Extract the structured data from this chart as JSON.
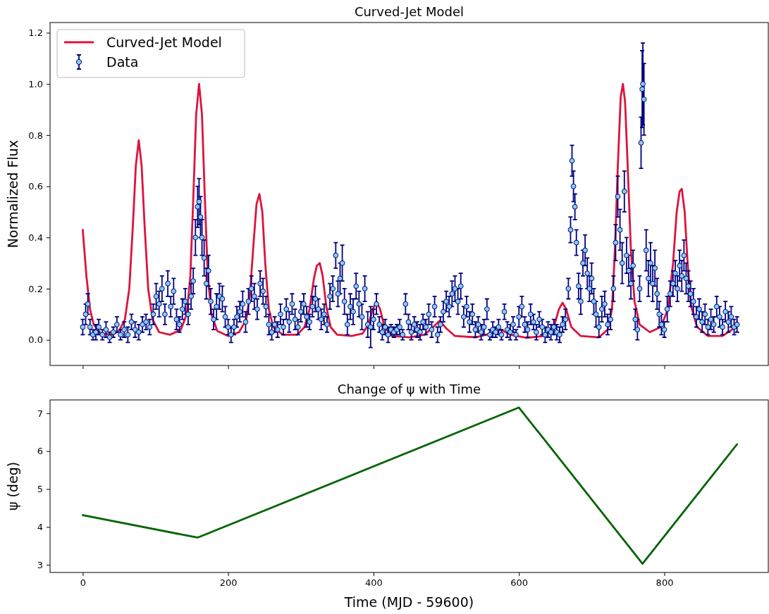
{
  "chart_data": [
    {
      "type": "line",
      "title": "Curved-Jet Model",
      "ylabel": "Normalized Flux",
      "xlim": [
        -45,
        943
      ],
      "xticks": [
        0,
        200,
        400,
        600,
        800
      ],
      "ylim": [
        -0.1,
        1.24
      ],
      "yticks": [
        {
          "value": 0,
          "label": "0.0"
        },
        0.2,
        0.4,
        0.6,
        0.8,
        {
          "value": 1,
          "label": "1.0"
        },
        1.2
      ],
      "tick_labels": "y",
      "legend": "top left",
      "grid": false,
      "series": [
        {
          "name": "Curved-Jet Model",
          "color": "#dc143c",
          "line_style": "solid",
          "x": [
            0,
            5,
            10,
            15,
            25,
            40,
            50,
            58,
            64,
            69,
            73,
            77,
            81,
            85,
            90,
            96,
            105,
            120,
            135,
            143,
            148,
            152,
            156,
            160,
            164,
            168,
            172,
            177,
            185,
            200,
            215,
            225,
            230,
            235,
            239,
            243,
            247,
            251,
            256,
            262,
            275,
            295,
            305,
            312,
            318,
            322,
            326,
            330,
            335,
            341,
            350,
            370,
            385,
            393,
            399,
            404,
            409,
            415,
            425,
            450,
            470,
            482,
            491,
            500,
            512,
            540,
            562,
            575,
            588,
            610,
            635,
            648,
            655,
            660,
            665,
            672,
            685,
            710,
            722,
            728,
            732,
            736,
            740,
            743,
            746,
            750,
            754,
            759,
            766,
            780,
            795,
            805,
            812,
            817,
            821,
            824,
            828,
            832,
            837,
            845,
            860,
            880,
            893,
            900
          ],
          "values": [
            0.43,
            0.25,
            0.12,
            0.06,
            0.025,
            0.02,
            0.035,
            0.08,
            0.2,
            0.45,
            0.68,
            0.78,
            0.68,
            0.45,
            0.2,
            0.08,
            0.03,
            0.02,
            0.04,
            0.1,
            0.25,
            0.55,
            0.88,
            1.0,
            0.88,
            0.55,
            0.25,
            0.1,
            0.035,
            0.015,
            0.03,
            0.08,
            0.18,
            0.38,
            0.53,
            0.57,
            0.5,
            0.3,
            0.12,
            0.05,
            0.02,
            0.02,
            0.05,
            0.12,
            0.24,
            0.29,
            0.3,
            0.25,
            0.13,
            0.05,
            0.02,
            0.015,
            0.025,
            0.06,
            0.12,
            0.15,
            0.12,
            0.05,
            0.015,
            0.01,
            0.02,
            0.05,
            0.075,
            0.045,
            0.015,
            0.01,
            0.025,
            0.04,
            0.02,
            0.008,
            0.015,
            0.05,
            0.12,
            0.145,
            0.12,
            0.05,
            0.015,
            0.01,
            0.04,
            0.12,
            0.35,
            0.68,
            0.95,
            1.0,
            0.93,
            0.65,
            0.35,
            0.15,
            0.06,
            0.03,
            0.05,
            0.12,
            0.3,
            0.5,
            0.58,
            0.59,
            0.5,
            0.3,
            0.13,
            0.05,
            0.015,
            0.015,
            0.04,
            0.07
          ]
        },
        {
          "name": "Data",
          "type": "scatter",
          "color": "#87ceeb",
          "marker": "circle",
          "x": [
            0,
            4,
            7,
            10,
            14,
            18,
            22,
            27,
            32,
            37,
            42,
            47,
            52,
            57,
            62,
            67,
            72,
            77,
            82,
            87,
            92,
            97,
            101,
            105,
            109,
            113,
            117,
            121,
            125,
            129,
            133,
            137,
            141,
            145,
            149,
            152,
            155,
            158,
            160,
            162,
            164,
            167,
            170,
            173,
            176,
            180,
            184,
            188,
            192,
            196,
            200,
            204,
            208,
            212,
            216,
            220,
            224,
            228,
            232,
            236,
            240,
            244,
            248,
            252,
            256,
            260,
            264,
            268,
            272,
            276,
            280,
            284,
            288,
            292,
            296,
            300,
            304,
            308,
            312,
            316,
            320,
            324,
            328,
            332,
            336,
            340,
            344,
            348,
            351,
            354,
            357,
            360,
            364,
            368,
            372,
            376,
            380,
            384,
            388,
            392,
            396,
            400,
            404,
            408,
            412,
            416,
            420,
            424,
            428,
            432,
            436,
            440,
            444,
            448,
            452,
            456,
            460,
            464,
            468,
            472,
            476,
            480,
            484,
            488,
            492,
            496,
            500,
            504,
            508,
            512,
            516,
            520,
            524,
            528,
            532,
            536,
            540,
            544,
            548,
            552,
            556,
            560,
            564,
            568,
            572,
            576,
            580,
            584,
            588,
            592,
            596,
            600,
            604,
            608,
            612,
            616,
            620,
            624,
            628,
            632,
            636,
            640,
            644,
            648,
            652,
            656,
            660,
            664,
            668,
            671,
            673,
            675,
            677,
            679,
            682,
            685,
            688,
            691,
            694,
            697,
            700,
            703,
            706,
            710,
            714,
            718,
            722,
            726,
            730,
            733,
            736,
            739,
            742,
            745,
            748,
            751,
            754,
            757,
            760,
            763,
            766,
            768,
            769.5,
            770.5,
            772,
            775,
            778,
            781,
            784,
            787,
            790,
            793,
            796,
            800,
            804,
            808,
            812,
            815,
            818,
            821,
            824,
            827,
            830,
            833,
            836,
            840,
            844,
            848,
            852,
            856,
            860,
            864,
            868,
            872,
            876,
            880,
            884,
            888,
            892,
            896,
            900
          ],
          "values": [
            0.05,
            0.1,
            0.14,
            0.05,
            0.02,
            0.03,
            0.05,
            0.02,
            0.04,
            0.01,
            0.03,
            0.06,
            0.02,
            0.04,
            0.02,
            0.07,
            0.04,
            0.03,
            0.06,
            0.07,
            0.05,
            0.1,
            0.17,
            0.14,
            0.2,
            0.1,
            0.22,
            0.13,
            0.19,
            0.08,
            0.06,
            0.12,
            0.15,
            0.1,
            0.17,
            0.23,
            0.4,
            0.52,
            0.54,
            0.48,
            0.4,
            0.32,
            0.22,
            0.27,
            0.15,
            0.08,
            0.13,
            0.17,
            0.16,
            0.09,
            0.05,
            0.02,
            0.05,
            0.09,
            0.11,
            0.14,
            0.07,
            0.15,
            0.2,
            0.17,
            0.12,
            0.22,
            0.19,
            0.13,
            0.06,
            0.03,
            0.06,
            0.04,
            0.1,
            0.05,
            0.12,
            0.07,
            0.14,
            0.08,
            0.05,
            0.11,
            0.14,
            0.09,
            0.07,
            0.13,
            0.16,
            0.12,
            0.08,
            0.1,
            0.06,
            0.17,
            0.2,
            0.33,
            0.18,
            0.24,
            0.3,
            0.15,
            0.06,
            0.13,
            0.11,
            0.21,
            0.14,
            0.09,
            0.2,
            0.06,
            0.05,
            0.08,
            0.14,
            0.06,
            0.03,
            0.05,
            0.02,
            0.04,
            0.03,
            0.04,
            0.05,
            0.02,
            0.14,
            0.07,
            0.03,
            0.06,
            0.04,
            0.03,
            0.07,
            0.05,
            0.1,
            0.04,
            0.13,
            0.02,
            0.06,
            0.11,
            0.15,
            0.13,
            0.18,
            0.2,
            0.15,
            0.21,
            0.09,
            0.13,
            0.07,
            0.1,
            0.04,
            0.06,
            0.03,
            0.05,
            0.12,
            0.02,
            0.04,
            0.03,
            0.05,
            0.02,
            0.11,
            0.04,
            0.03,
            0.06,
            0.02,
            0.09,
            0.13,
            0.06,
            0.04,
            0.1,
            0.07,
            0.03,
            0.08,
            0.05,
            0.02,
            0.04,
            0.03,
            0.05,
            0.03,
            0.02,
            0.06,
            0.08,
            0.2,
            0.43,
            0.7,
            0.6,
            0.52,
            0.38,
            0.21,
            0.15,
            0.3,
            0.35,
            0.26,
            0.2,
            0.24,
            0.15,
            0.1,
            0.05,
            0.12,
            0.14,
            0.06,
            0.08,
            0.2,
            0.38,
            0.56,
            0.43,
            0.3,
            0.58,
            0.33,
            0.27,
            0.22,
            0.29,
            0.08,
            0.04,
            0.2,
            0.77,
            0.98,
            1.0,
            0.94,
            0.35,
            0.24,
            0.3,
            0.22,
            0.28,
            0.18,
            0.1,
            0.06,
            0.04,
            0.12,
            0.18,
            0.22,
            0.26,
            0.2,
            0.29,
            0.25,
            0.33,
            0.24,
            0.21,
            0.18,
            0.15,
            0.09,
            0.12,
            0.07,
            0.1,
            0.05,
            0.08,
            0.06,
            0.13,
            0.09,
            0.05,
            0.11,
            0.07,
            0.09,
            0.05,
            0.06
          ],
          "errors": [
            0.03,
            0.04,
            0.04,
            0.03,
            0.02,
            0.03,
            0.03,
            0.02,
            0.03,
            0.02,
            0.02,
            0.03,
            0.02,
            0.03,
            0.03,
            0.03,
            0.03,
            0.03,
            0.03,
            0.03,
            0.03,
            0.04,
            0.05,
            0.05,
            0.05,
            0.04,
            0.05,
            0.04,
            0.05,
            0.04,
            0.03,
            0.04,
            0.05,
            0.04,
            0.05,
            0.05,
            0.07,
            0.08,
            0.09,
            0.08,
            0.07,
            0.07,
            0.06,
            0.06,
            0.05,
            0.04,
            0.05,
            0.05,
            0.05,
            0.04,
            0.03,
            0.03,
            0.03,
            0.04,
            0.04,
            0.05,
            0.04,
            0.05,
            0.05,
            0.05,
            0.04,
            0.05,
            0.05,
            0.04,
            0.04,
            0.03,
            0.03,
            0.03,
            0.04,
            0.03,
            0.04,
            0.04,
            0.04,
            0.04,
            0.03,
            0.04,
            0.04,
            0.04,
            0.03,
            0.04,
            0.05,
            0.04,
            0.04,
            0.04,
            0.03,
            0.05,
            0.05,
            0.05,
            0.05,
            0.06,
            0.07,
            0.05,
            0.04,
            0.05,
            0.05,
            0.05,
            0.05,
            0.05,
            0.05,
            0.05,
            0.08,
            0.04,
            0.04,
            0.03,
            0.03,
            0.03,
            0.03,
            0.02,
            0.02,
            0.02,
            0.03,
            0.02,
            0.04,
            0.03,
            0.03,
            0.03,
            0.03,
            0.03,
            0.03,
            0.03,
            0.04,
            0.03,
            0.04,
            0.03,
            0.03,
            0.04,
            0.04,
            0.04,
            0.05,
            0.05,
            0.05,
            0.05,
            0.04,
            0.04,
            0.04,
            0.04,
            0.03,
            0.03,
            0.03,
            0.03,
            0.04,
            0.02,
            0.03,
            0.02,
            0.03,
            0.02,
            0.03,
            0.03,
            0.03,
            0.03,
            0.02,
            0.04,
            0.04,
            0.03,
            0.03,
            0.04,
            0.03,
            0.03,
            0.03,
            0.03,
            0.03,
            0.03,
            0.03,
            0.03,
            0.03,
            0.03,
            0.03,
            0.04,
            0.04,
            0.05,
            0.06,
            0.06,
            0.05,
            0.05,
            0.05,
            0.05,
            0.05,
            0.06,
            0.06,
            0.05,
            0.06,
            0.05,
            0.05,
            0.04,
            0.05,
            0.05,
            0.04,
            0.04,
            0.05,
            0.07,
            0.08,
            0.08,
            0.08,
            0.08,
            0.07,
            0.06,
            0.06,
            0.06,
            0.04,
            0.04,
            0.05,
            0.1,
            0.15,
            0.16,
            0.14,
            0.08,
            0.07,
            0.08,
            0.07,
            0.07,
            0.06,
            0.05,
            0.04,
            0.03,
            0.05,
            0.05,
            0.05,
            0.05,
            0.05,
            0.06,
            0.06,
            0.06,
            0.06,
            0.06,
            0.05,
            0.05,
            0.04,
            0.04,
            0.04,
            0.04,
            0.03,
            0.04,
            0.03,
            0.04,
            0.04,
            0.03,
            0.04,
            0.04,
            0.04,
            0.03,
            0.03
          ]
        }
      ]
    },
    {
      "type": "line",
      "title": "Change of ψ with Time",
      "xlabel": "Time (MJD - 59600)",
      "ylabel": "ψ (deg)",
      "xlim": [
        -45,
        943
      ],
      "xticks": [
        0,
        200,
        400,
        600,
        800
      ],
      "ylim": [
        2.8,
        7.35
      ],
      "yticks": [
        3,
        4,
        5,
        6,
        7
      ],
      "grid": false,
      "legend": false,
      "series": [
        {
          "color": "#006400",
          "x": [
            0,
            158,
            600,
            770,
            900
          ],
          "values": [
            4.31,
            3.72,
            7.15,
            3.03,
            6.18
          ]
        }
      ]
    }
  ]
}
